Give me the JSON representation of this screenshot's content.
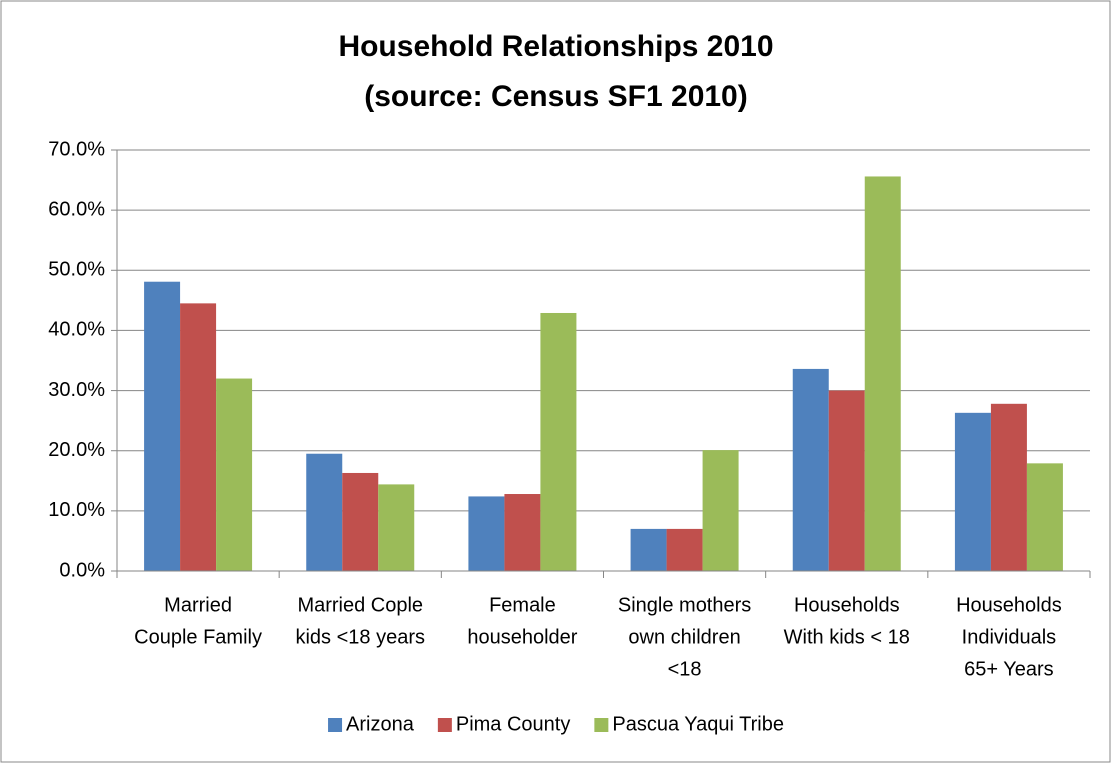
{
  "chart_data": {
    "type": "bar",
    "title": "Household Relationships 2010",
    "subtitle": "(source: Census SF1 2010)",
    "categories": [
      [
        "Married",
        "Couple Family"
      ],
      [
        "Married Cople",
        "kids <18 years"
      ],
      [
        "Female",
        "householder"
      ],
      [
        "Single mothers",
        "own children",
        "<18"
      ],
      [
        "Households",
        "With kids < 18"
      ],
      [
        "Households",
        "Individuals",
        "65+ Years"
      ]
    ],
    "series": [
      {
        "name": "Arizona",
        "color": "#4f81bd",
        "values": [
          48.1,
          19.5,
          12.4,
          7.0,
          33.6,
          26.3
        ]
      },
      {
        "name": "Pima County",
        "color": "#c0504d",
        "values": [
          44.5,
          16.3,
          12.8,
          7.0,
          30.0,
          27.8
        ]
      },
      {
        "name": "Pascua Yaqui Tribe",
        "color": "#9bbb59",
        "values": [
          32.0,
          14.4,
          42.9,
          20.1,
          65.6,
          17.9
        ]
      }
    ],
    "ylim": [
      0,
      70
    ],
    "yticks": [
      {
        "value": 0,
        "label": "0.0%"
      },
      {
        "value": 10,
        "label": "10.0%"
      },
      {
        "value": 20,
        "label": "20.0%"
      },
      {
        "value": 30,
        "label": "30.0%"
      },
      {
        "value": 40,
        "label": "40.0%"
      },
      {
        "value": 50,
        "label": "50.0%"
      },
      {
        "value": 60,
        "label": "60.0%"
      },
      {
        "value": 70,
        "label": "70.0%"
      }
    ],
    "grid": true,
    "legend": "bottom"
  }
}
